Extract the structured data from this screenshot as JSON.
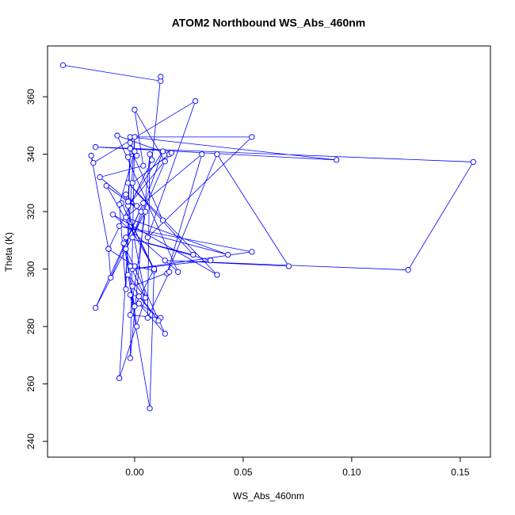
{
  "chart_data": {
    "type": "line",
    "title": "ATOM2 Northbound WS_Abs_460nm",
    "x_label": "WS_Abs_460nm",
    "y_label": "Theta (K)",
    "markers": true,
    "xlim": [
      -0.0401,
      0.1639
    ],
    "ylim": [
      234.5,
      377.7
    ],
    "xticks": [
      {
        "value": 0,
        "label": "0.00"
      },
      {
        "value": 0.05,
        "label": "0.05"
      },
      {
        "value": 0.1,
        "label": "0.10"
      },
      {
        "value": 0.15,
        "label": "0.15"
      }
    ],
    "yticks": [
      240,
      260,
      280,
      300,
      320,
      340,
      360
    ],
    "x": [
      -0.033,
      0.012,
      0.012,
      0.008,
      -0.012,
      -0.02,
      -0.019,
      0.028,
      0.006,
      0.054,
      -0.002,
      0.093,
      -0.018,
      0.156,
      0.126,
      0.014,
      0.071,
      0.038,
      0.015,
      0.031,
      -0.004,
      0.043,
      -0.007,
      0.054,
      -0.001,
      0.035,
      -0.004,
      0.027,
      -0.003,
      0.038,
      -0.01,
      0.02,
      -0.008,
      0.016,
      -0.001,
      0.017,
      -0.003,
      0.013,
      -0.001,
      0.014,
      0.0,
      0.004,
      -0.016,
      0.003,
      -0.013,
      0.009,
      -0.006,
      0.009,
      0.0,
      -0.012,
      -0.011,
      0.004,
      -0.018,
      0.005,
      -0.002,
      0.012,
      0.002,
      0.014,
      -0.004,
      0.001,
      -0.003,
      0.005,
      -0.007,
      0.0,
      -0.002,
      0.007,
      0.006,
      0.016,
      -0.001,
      0.011,
      0.002,
      -0.002,
      0.007,
      0.009,
      0.0,
      -0.005,
      -0.002,
      0.005,
      -0.004,
      0.001,
      -0.003,
      -0.002,
      0.001,
      -0.003,
      0.0,
      -0.007,
      -0.004,
      -0.002,
      0.013
    ],
    "series": [
      {
        "color": "#0000ff",
        "values": [
          371,
          365.5,
          367,
          338,
          307,
          339.5,
          337,
          358.5,
          311,
          346,
          346,
          338,
          342.5,
          337.3,
          299.7,
          303,
          301,
          340,
          298.5,
          340,
          318,
          305,
          315,
          306,
          300,
          303,
          311,
          305,
          330,
          298,
          319,
          299,
          346.5,
          340,
          330,
          340.5,
          322,
          341,
          311,
          337.5,
          355.5,
          336,
          332,
          320,
          329,
          300,
          323,
          299.5,
          301,
          307,
          297,
          323,
          286.5,
          320,
          284,
          283,
          288,
          277.5,
          307,
          280,
          298,
          290,
          262,
          346,
          269,
          340,
          283,
          299,
          294,
          282,
          290.5,
          291,
          251.5,
          300,
          287,
          309,
          301,
          290,
          326,
          322,
          323.5,
          344,
          339.5,
          339,
          341,
          322.5,
          293,
          342,
          317
        ]
      }
    ]
  }
}
